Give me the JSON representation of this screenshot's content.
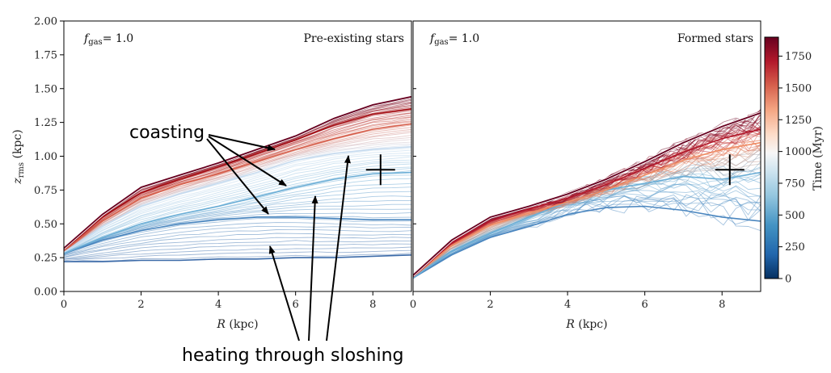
{
  "chart_data": [
    {
      "type": "line",
      "panel_label": "f_gas= 1.0",
      "panel_label_parts": {
        "var": "f",
        "sub": "gas",
        "eq": "= 1.0"
      },
      "title": "Pre-existing stars",
      "xlabel": "R (kpc)",
      "xlabel_parts": {
        "var": "R",
        "unit": " (kpc)"
      },
      "ylabel": "z_rms (kpc)",
      "ylabel_parts": {
        "var": "z",
        "sub": "rms",
        "unit": " (kpc)"
      },
      "xlim": [
        0,
        9
      ],
      "ylim": [
        0,
        2.0
      ],
      "xticks": [
        0,
        2,
        4,
        6,
        8
      ],
      "yticks": [
        0.0,
        0.25,
        0.5,
        0.75,
        1.0,
        1.25,
        1.5,
        1.75,
        2.0
      ],
      "ytick_labels": [
        "0.00",
        "0.25",
        "0.50",
        "0.75",
        "1.00",
        "1.25",
        "1.50",
        "1.75",
        "2.00"
      ],
      "marker_plus": {
        "x": 8.2,
        "y": 0.9
      },
      "series_groups": [
        {
          "role": "latest",
          "time_myr": 1900,
          "color": "#67001f",
          "x": [
            0,
            1,
            2,
            3,
            4,
            5,
            6,
            7,
            8,
            9
          ],
          "y": [
            0.32,
            0.57,
            0.77,
            0.86,
            0.95,
            1.05,
            1.15,
            1.28,
            1.38,
            1.44
          ]
        },
        {
          "role": "recent",
          "time_myr": 1700,
          "color": "#a50f15",
          "x": [
            0,
            1,
            2,
            3,
            4,
            5,
            6,
            7,
            8,
            9
          ],
          "y": [
            0.31,
            0.55,
            0.73,
            0.83,
            0.92,
            1.02,
            1.12,
            1.23,
            1.31,
            1.35
          ]
        },
        {
          "role": "recent",
          "time_myr": 1400,
          "color": "#d6604d",
          "x": [
            0,
            1,
            2,
            3,
            4,
            5,
            6,
            7,
            8,
            9
          ],
          "y": [
            0.3,
            0.52,
            0.69,
            0.79,
            0.87,
            0.96,
            1.05,
            1.13,
            1.2,
            1.24
          ]
        },
        {
          "role": "coasting",
          "time_myr": 1000,
          "color": "#c6dbef",
          "x": [
            0,
            1,
            2,
            3,
            4,
            5,
            6,
            7,
            8,
            9
          ],
          "y": [
            0.29,
            0.48,
            0.63,
            0.72,
            0.8,
            0.88,
            0.97,
            1.02,
            1.05,
            1.07
          ]
        },
        {
          "role": "coasting",
          "time_myr": 800,
          "color": "#6baed6",
          "x": [
            0,
            1,
            2,
            3,
            4,
            5,
            6,
            7,
            8,
            9
          ],
          "y": [
            0.28,
            0.4,
            0.5,
            0.57,
            0.63,
            0.7,
            0.77,
            0.83,
            0.87,
            0.88
          ]
        },
        {
          "role": "coasting",
          "time_myr": 500,
          "color": "#4a86bf",
          "x": [
            0,
            1,
            2,
            3,
            4,
            5,
            6,
            7,
            8,
            9
          ],
          "y": [
            0.28,
            0.38,
            0.45,
            0.5,
            0.53,
            0.55,
            0.55,
            0.54,
            0.53,
            0.53
          ]
        },
        {
          "role": "earliest",
          "time_myr": 0,
          "color": "#3b6aa8",
          "x": [
            0,
            1,
            2,
            3,
            4,
            5,
            6,
            7,
            8,
            9
          ],
          "y": [
            0.22,
            0.22,
            0.23,
            0.23,
            0.24,
            0.24,
            0.25,
            0.25,
            0.26,
            0.27
          ]
        }
      ]
    },
    {
      "type": "line",
      "panel_label": "f_gas= 1.0",
      "panel_label_parts": {
        "var": "f",
        "sub": "gas",
        "eq": "= 1.0"
      },
      "title": "Formed stars",
      "xlabel": "R (kpc)",
      "xlabel_parts": {
        "var": "R",
        "unit": " (kpc)"
      },
      "xlim": [
        0,
        9
      ],
      "ylim": [
        0,
        2.0
      ],
      "xticks": [
        0,
        2,
        4,
        6,
        8
      ],
      "marker_plus": {
        "x": 8.2,
        "y": 0.9
      },
      "series_groups": [
        {
          "role": "latest",
          "time_myr": 1900,
          "color": "#67001f",
          "x": [
            0,
            1,
            2,
            3,
            4,
            5,
            6,
            7,
            8,
            9
          ],
          "y": [
            0.12,
            0.38,
            0.55,
            0.63,
            0.72,
            0.83,
            0.96,
            1.1,
            1.22,
            1.32
          ]
        },
        {
          "role": "recent",
          "time_myr": 1600,
          "color": "#b2182b",
          "x": [
            0,
            1,
            2,
            3,
            4,
            5,
            6,
            7,
            8,
            9
          ],
          "y": [
            0.11,
            0.36,
            0.52,
            0.61,
            0.69,
            0.79,
            0.91,
            1.03,
            1.13,
            1.2
          ]
        },
        {
          "role": "recent",
          "time_myr": 1300,
          "color": "#ef8a62",
          "x": [
            0,
            1,
            2,
            3,
            4,
            5,
            6,
            7,
            8,
            9
          ],
          "y": [
            0.11,
            0.34,
            0.49,
            0.58,
            0.66,
            0.75,
            0.86,
            0.97,
            1.05,
            1.1
          ]
        },
        {
          "role": "noisy",
          "time_myr": 800,
          "color": "#6baed6",
          "x": [
            0,
            1,
            2,
            3,
            4,
            5,
            6,
            7,
            8,
            9
          ],
          "y": [
            0.1,
            0.3,
            0.43,
            0.55,
            0.66,
            0.75,
            0.8,
            0.85,
            0.83,
            0.88
          ]
        },
        {
          "role": "noisy",
          "time_myr": 400,
          "color": "#4a86bf",
          "x": [
            0,
            1,
            2,
            3,
            4,
            5,
            6,
            7,
            8,
            9
          ],
          "y": [
            0.1,
            0.27,
            0.4,
            0.48,
            0.57,
            0.62,
            0.63,
            0.6,
            0.55,
            0.52
          ]
        }
      ]
    }
  ],
  "colorbar": {
    "label": "Time (Myr)",
    "range": [
      0,
      1900
    ],
    "ticks": [
      0,
      250,
      500,
      750,
      1000,
      1250,
      1500,
      1750
    ],
    "colors": [
      "#053061",
      "#2166ac",
      "#4393c3",
      "#92c5de",
      "#d1e5f0",
      "#f7f7f7",
      "#fddbc7",
      "#f4a582",
      "#d6604d",
      "#b2182b",
      "#67001f"
    ]
  },
  "annotations": {
    "coasting": "coasting",
    "heating": "heating through sloshing"
  }
}
